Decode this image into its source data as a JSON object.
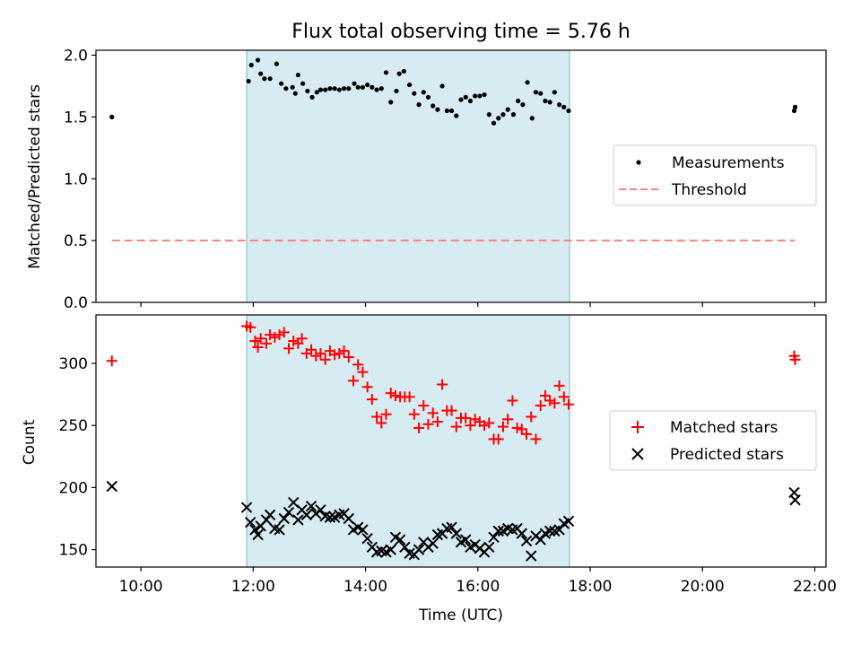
{
  "title": "Flux total observing time = 5.76 h",
  "xlabel": "Time (UTC)",
  "x_ticks": [
    "10:00",
    "12:00",
    "14:00",
    "16:00",
    "18:00",
    "20:00",
    "22:00"
  ],
  "x_range": [
    "09:12",
    "22:12"
  ],
  "shaded_span": [
    "11:53",
    "17:38"
  ],
  "colors": {
    "shade": "#add8e6",
    "matched": "#ff0000",
    "predicted": "#000000",
    "threshold": "#ff8080",
    "measure": "#000000"
  },
  "chart_data": [
    {
      "type": "scatter",
      "name": "ratio-panel",
      "ylabel": "Matched/Predicted stars",
      "ylim": [
        0.0,
        2.04
      ],
      "y_ticks": [
        "0.0",
        "0.5",
        "1.0",
        "1.5",
        "2.0"
      ],
      "legend_position": "center-right",
      "series": [
        {
          "name": "Measurements",
          "marker": "dot",
          "points": [
            [
              "09:29",
              1.5
            ],
            [
              "11:55",
              1.79
            ],
            [
              "11:58",
              1.92
            ],
            [
              "12:05",
              1.96
            ],
            [
              "12:08",
              1.85
            ],
            [
              "12:12",
              1.81
            ],
            [
              "12:18",
              1.81
            ],
            [
              "12:25",
              1.93
            ],
            [
              "12:30",
              1.77
            ],
            [
              "12:35",
              1.73
            ],
            [
              "12:42",
              1.74
            ],
            [
              "12:45",
              1.69
            ],
            [
              "12:48",
              1.84
            ],
            [
              "12:53",
              1.77
            ],
            [
              "12:58",
              1.71
            ],
            [
              "13:03",
              1.66
            ],
            [
              "13:08",
              1.7
            ],
            [
              "13:12",
              1.72
            ],
            [
              "13:17",
              1.72
            ],
            [
              "13:22",
              1.73
            ],
            [
              "13:27",
              1.73
            ],
            [
              "13:32",
              1.72
            ],
            [
              "13:37",
              1.73
            ],
            [
              "13:42",
              1.73
            ],
            [
              "13:48",
              1.77
            ],
            [
              "13:52",
              1.74
            ],
            [
              "13:57",
              1.74
            ],
            [
              "14:02",
              1.76
            ],
            [
              "14:07",
              1.74
            ],
            [
              "14:12",
              1.72
            ],
            [
              "14:17",
              1.73
            ],
            [
              "14:22",
              1.86
            ],
            [
              "14:27",
              1.62
            ],
            [
              "14:33",
              1.71
            ],
            [
              "14:36",
              1.85
            ],
            [
              "14:41",
              1.87
            ],
            [
              "14:47",
              1.76
            ],
            [
              "14:52",
              1.69
            ],
            [
              "14:57",
              1.6
            ],
            [
              "15:02",
              1.7
            ],
            [
              "15:07",
              1.66
            ],
            [
              "15:12",
              1.59
            ],
            [
              "15:17",
              1.56
            ],
            [
              "15:22",
              1.75
            ],
            [
              "15:27",
              1.55
            ],
            [
              "15:32",
              1.55
            ],
            [
              "15:37",
              1.51
            ],
            [
              "15:42",
              1.64
            ],
            [
              "15:47",
              1.66
            ],
            [
              "15:52",
              1.63
            ],
            [
              "15:57",
              1.67
            ],
            [
              "16:02",
              1.67
            ],
            [
              "16:07",
              1.68
            ],
            [
              "16:12",
              1.52
            ],
            [
              "16:17",
              1.45
            ],
            [
              "16:22",
              1.49
            ],
            [
              "16:27",
              1.52
            ],
            [
              "16:32",
              1.56
            ],
            [
              "16:38",
              1.52
            ],
            [
              "16:43",
              1.63
            ],
            [
              "16:48",
              1.6
            ],
            [
              "16:53",
              1.78
            ],
            [
              "16:58",
              1.49
            ],
            [
              "17:02",
              1.7
            ],
            [
              "17:07",
              1.69
            ],
            [
              "17:12",
              1.63
            ],
            [
              "17:17",
              1.62
            ],
            [
              "17:22",
              1.7
            ],
            [
              "17:27",
              1.6
            ],
            [
              "17:32",
              1.58
            ],
            [
              "17:37",
              1.55
            ],
            [
              "21:38",
              1.55
            ],
            [
              "21:39",
              1.58
            ]
          ]
        },
        {
          "name": "Threshold",
          "marker": "dashed-line",
          "points": [
            [
              "09:29",
              0.5
            ],
            [
              "21:39",
              0.5
            ]
          ]
        }
      ]
    },
    {
      "type": "scatter",
      "name": "count-panel",
      "ylabel": "Count",
      "ylim": [
        136,
        339
      ],
      "y_ticks": [
        "150",
        "200",
        "250",
        "300"
      ],
      "legend_position": "center-right",
      "series": [
        {
          "name": "Matched stars",
          "marker": "plus",
          "points": [
            [
              "09:29",
              302
            ],
            [
              "11:53",
              330
            ],
            [
              "11:57",
              329
            ],
            [
              "12:02",
              318
            ],
            [
              "12:05",
              313
            ],
            [
              "12:08",
              320
            ],
            [
              "12:14",
              316
            ],
            [
              "12:18",
              323
            ],
            [
              "12:23",
              321
            ],
            [
              "12:28",
              323
            ],
            [
              "12:33",
              325
            ],
            [
              "12:38",
              312
            ],
            [
              "12:43",
              318
            ],
            [
              "12:48",
              316
            ],
            [
              "12:52",
              320
            ],
            [
              "12:57",
              308
            ],
            [
              "13:02",
              311
            ],
            [
              "13:07",
              306
            ],
            [
              "13:12",
              308
            ],
            [
              "13:17",
              303
            ],
            [
              "13:22",
              310
            ],
            [
              "13:27",
              307
            ],
            [
              "13:32",
              308
            ],
            [
              "13:37",
              310
            ],
            [
              "13:42",
              305
            ],
            [
              "13:47",
              286
            ],
            [
              "13:52",
              299
            ],
            [
              "13:57",
              293
            ],
            [
              "14:02",
              281
            ],
            [
              "14:07",
              271
            ],
            [
              "14:12",
              257
            ],
            [
              "14:17",
              252
            ],
            [
              "14:22",
              259
            ],
            [
              "14:27",
              276
            ],
            [
              "14:32",
              274
            ],
            [
              "14:37",
              273
            ],
            [
              "14:42",
              273
            ],
            [
              "14:47",
              273
            ],
            [
              "14:52",
              259
            ],
            [
              "14:57",
              248
            ],
            [
              "15:02",
              266
            ],
            [
              "15:07",
              251
            ],
            [
              "15:12",
              260
            ],
            [
              "15:17",
              253
            ],
            [
              "15:22",
              283
            ],
            [
              "15:27",
              262
            ],
            [
              "15:32",
              262
            ],
            [
              "15:37",
              249
            ],
            [
              "15:42",
              256
            ],
            [
              "15:47",
              256
            ],
            [
              "15:52",
              250
            ],
            [
              "15:57",
              255
            ],
            [
              "16:02",
              253
            ],
            [
              "16:07",
              250
            ],
            [
              "16:12",
              252
            ],
            [
              "16:17",
              239
            ],
            [
              "16:22",
              239
            ],
            [
              "16:27",
              249
            ],
            [
              "16:32",
              255
            ],
            [
              "16:37",
              270
            ],
            [
              "16:42",
              248
            ],
            [
              "16:47",
              247
            ],
            [
              "16:52",
              243
            ],
            [
              "16:57",
              257
            ],
            [
              "17:02",
              239
            ],
            [
              "17:07",
              266
            ],
            [
              "17:12",
              274
            ],
            [
              "17:17",
              270
            ],
            [
              "17:22",
              268
            ],
            [
              "17:27",
              282
            ],
            [
              "17:32",
              273
            ],
            [
              "17:37",
              267
            ],
            [
              "21:38",
              306
            ],
            [
              "21:39",
              303
            ]
          ]
        },
        {
          "name": "Predicted stars",
          "marker": "x",
          "points": [
            [
              "09:29",
              201
            ],
            [
              "11:53",
              184
            ],
            [
              "11:57",
              172
            ],
            [
              "12:02",
              166
            ],
            [
              "12:05",
              162
            ],
            [
              "12:08",
              169
            ],
            [
              "12:14",
              174
            ],
            [
              "12:18",
              178
            ],
            [
              "12:23",
              167
            ],
            [
              "12:28",
              166
            ],
            [
              "12:33",
              175
            ],
            [
              "12:38",
              180
            ],
            [
              "12:43",
              188
            ],
            [
              "12:48",
              174
            ],
            [
              "12:52",
              182
            ],
            [
              "12:57",
              178
            ],
            [
              "13:02",
              185
            ],
            [
              "13:07",
              179
            ],
            [
              "13:12",
              182
            ],
            [
              "13:17",
              177
            ],
            [
              "13:22",
              176
            ],
            [
              "13:27",
              176
            ],
            [
              "13:32",
              178
            ],
            [
              "13:37",
              179
            ],
            [
              "13:42",
              175
            ],
            [
              "13:47",
              166
            ],
            [
              "13:52",
              168
            ],
            [
              "13:57",
              166
            ],
            [
              "14:02",
              159
            ],
            [
              "14:07",
              152
            ],
            [
              "14:12",
              148
            ],
            [
              "14:17",
              149
            ],
            [
              "14:22",
              148
            ],
            [
              "14:27",
              150
            ],
            [
              "14:32",
              160
            ],
            [
              "14:37",
              158
            ],
            [
              "14:42",
              152
            ],
            [
              "14:47",
              147
            ],
            [
              "14:52",
              146
            ],
            [
              "14:57",
              150
            ],
            [
              "15:02",
              156
            ],
            [
              "15:07",
              152
            ],
            [
              "15:12",
              155
            ],
            [
              "15:17",
              162
            ],
            [
              "15:22",
              163
            ],
            [
              "15:27",
              167
            ],
            [
              "15:32",
              168
            ],
            [
              "15:37",
              163
            ],
            [
              "15:42",
              156
            ],
            [
              "15:47",
              158
            ],
            [
              "15:52",
              152
            ],
            [
              "15:57",
              154
            ],
            [
              "16:02",
              151
            ],
            [
              "16:07",
              148
            ],
            [
              "16:12",
              152
            ],
            [
              "16:17",
              160
            ],
            [
              "16:22",
              165
            ],
            [
              "16:27",
              165
            ],
            [
              "16:32",
              167
            ],
            [
              "16:37",
              166
            ],
            [
              "16:42",
              167
            ],
            [
              "16:47",
              163
            ],
            [
              "16:52",
              157
            ],
            [
              "16:57",
              145
            ],
            [
              "17:02",
              161
            ],
            [
              "17:07",
              158
            ],
            [
              "17:12",
              163
            ],
            [
              "17:17",
              165
            ],
            [
              "17:22",
              165
            ],
            [
              "17:27",
              166
            ],
            [
              "17:32",
              171
            ],
            [
              "17:37",
              173
            ],
            [
              "21:38",
              196
            ],
            [
              "21:39",
              190
            ]
          ]
        }
      ]
    }
  ]
}
